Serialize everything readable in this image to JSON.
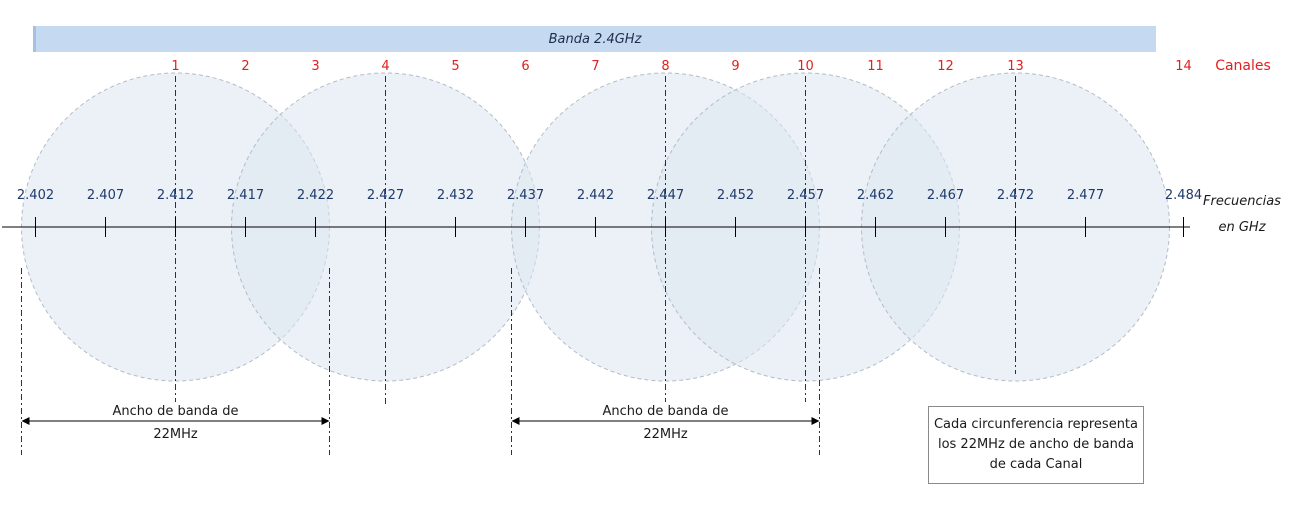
{
  "band": {
    "title": "Banda 2.4GHz",
    "color": "#c5d9f1"
  },
  "channels_title": "Canales",
  "axis_title_lines": [
    "Frecuencias",
    "en GHz"
  ],
  "channels": [
    {
      "num": "1",
      "freq": 2.412
    },
    {
      "num": "2",
      "freq": 2.417
    },
    {
      "num": "3",
      "freq": 2.422
    },
    {
      "num": "4",
      "freq": 2.427
    },
    {
      "num": "5",
      "freq": 2.432
    },
    {
      "num": "6",
      "freq": 2.437
    },
    {
      "num": "7",
      "freq": 2.442
    },
    {
      "num": "8",
      "freq": 2.447
    },
    {
      "num": "9",
      "freq": 2.452
    },
    {
      "num": "10",
      "freq": 2.457
    },
    {
      "num": "11",
      "freq": 2.462
    },
    {
      "num": "12",
      "freq": 2.467
    },
    {
      "num": "13",
      "freq": 2.472
    },
    {
      "num": "14",
      "freq": 2.484
    }
  ],
  "frequencies": [
    {
      "label": "2.402",
      "value": 2.402
    },
    {
      "label": "2.407",
      "value": 2.407
    },
    {
      "label": "2.412",
      "value": 2.412
    },
    {
      "label": "2.417",
      "value": 2.417
    },
    {
      "label": "2.422",
      "value": 2.422
    },
    {
      "label": "2.427",
      "value": 2.427
    },
    {
      "label": "2.432",
      "value": 2.432
    },
    {
      "label": "2.437",
      "value": 2.437
    },
    {
      "label": "2.442",
      "value": 2.442
    },
    {
      "label": "2.447",
      "value": 2.447
    },
    {
      "label": "2.452",
      "value": 2.452
    },
    {
      "label": "2.457",
      "value": 2.457
    },
    {
      "label": "2.462",
      "value": 2.462
    },
    {
      "label": "2.467",
      "value": 2.467
    },
    {
      "label": "2.472",
      "value": 2.472
    },
    {
      "label": "2.477",
      "value": 2.477
    },
    {
      "label": "2.484",
      "value": 2.484
    }
  ],
  "channel_circles": [
    "1",
    "4",
    "8",
    "10",
    "13"
  ],
  "bandwidth_markers": [
    {
      "channel": "1",
      "lines": [
        "Ancho de banda de",
        "22MHz"
      ]
    },
    {
      "channel": "8",
      "lines": [
        "Ancho de banda de",
        "22MHz"
      ]
    }
  ],
  "bandwidth_mhz": 22,
  "note_lines": [
    "Cada circunferencia representa",
    "los 22MHz de ancho de banda",
    "de cada Canal"
  ]
}
